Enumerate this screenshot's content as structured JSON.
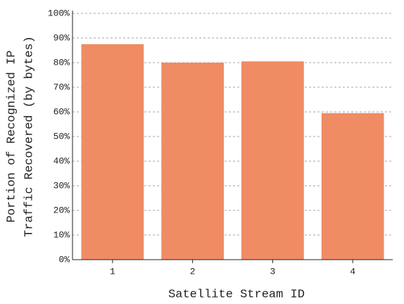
{
  "chart_data": {
    "type": "bar",
    "categories": [
      "1",
      "2",
      "3",
      "4"
    ],
    "values": [
      87.5,
      80,
      80.5,
      59.5
    ],
    "color": "#ef8c63",
    "xlabel": "Satellite Stream ID",
    "ylabel": [
      "Portion of Recognized IP",
      "Traffic Recovered (by bytes)"
    ],
    "ylim": [
      0,
      100
    ],
    "yticks": [
      {
        "value": 0,
        "label": "0%"
      },
      {
        "value": 10,
        "label": "10%"
      },
      {
        "value": 20,
        "label": "20%"
      },
      {
        "value": 30,
        "label": "30%"
      },
      {
        "value": 40,
        "label": "40%"
      },
      {
        "value": 50,
        "label": "50%"
      },
      {
        "value": 60,
        "label": "60%"
      },
      {
        "value": 70,
        "label": "70%"
      },
      {
        "value": 80,
        "label": "80%"
      },
      {
        "value": 90,
        "label": "90%"
      },
      {
        "value": 100,
        "label": "100%"
      }
    ],
    "grid": true
  }
}
